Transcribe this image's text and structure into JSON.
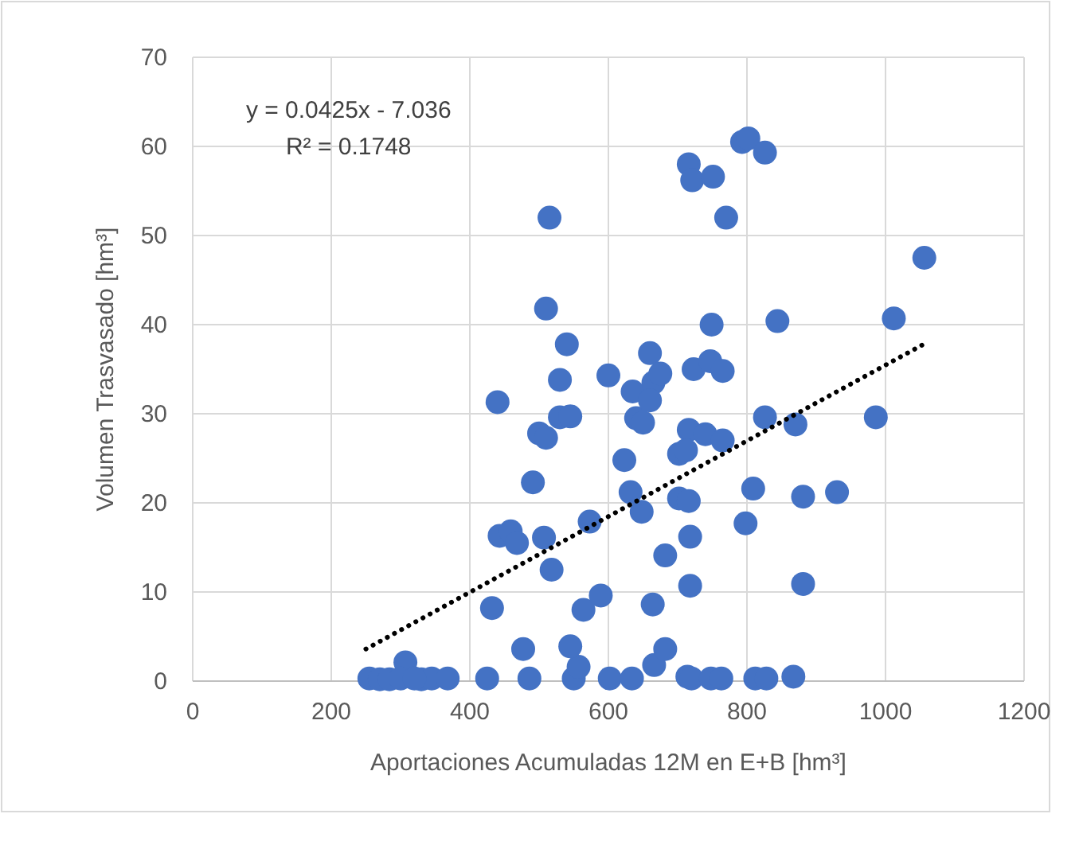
{
  "chart_data": {
    "type": "scatter",
    "xlabel": "Aportaciones Acumuladas 12M en E+B [hm³]",
    "ylabel": "Volumen Trasvasado [hm³]",
    "xlim": [
      0,
      1200
    ],
    "xticks": [
      0,
      200,
      400,
      600,
      800,
      1000,
      1200
    ],
    "ylim": [
      0,
      70
    ],
    "yticks": [
      0,
      10,
      20,
      30,
      40,
      50,
      60,
      70
    ],
    "grid": true,
    "annotations": [
      "y = 0.0425x - 7.036",
      "R² = 0.1748"
    ],
    "series": [
      {
        "color": "#4472c4",
        "marker": "circle",
        "x": [
          255,
          270,
          284,
          307,
          330,
          345,
          368,
          425,
          486,
          550,
          557,
          545,
          477,
          432,
          564,
          589,
          602,
          634,
          664,
          666,
          682,
          714,
          720,
          748,
          718,
          682,
          718,
          518,
          507,
          443,
          459,
          468,
          573,
          491,
          623,
          632,
          648,
          702,
          716,
          702,
          809,
          881,
          930,
          798,
          881,
          763,
          812,
          828,
          867,
          793,
          802,
          826,
          716,
          721,
          751,
          770,
          1056,
          1012,
          844,
          749,
          723,
          747,
          765,
          826,
          870,
          986,
          716,
          740,
          765,
          712,
          515,
          510,
          540,
          530,
          600,
          635,
          660,
          665,
          675,
          440,
          530,
          545,
          640,
          650,
          660,
          500,
          510,
          300,
          320
        ],
        "values": [
          0.3,
          0.2,
          0.2,
          2.1,
          0.2,
          0.3,
          0.3,
          0.3,
          0.3,
          0.3,
          1.6,
          3.9,
          3.6,
          8.2,
          8.0,
          9.6,
          0.3,
          0.3,
          8.6,
          1.8,
          3.6,
          0.5,
          0.3,
          0.3,
          10.7,
          14.1,
          16.2,
          12.5,
          16.1,
          16.3,
          16.8,
          15.5,
          17.9,
          22.3,
          24.8,
          21.2,
          19.0,
          20.5,
          20.2,
          25.5,
          21.6,
          20.7,
          21.2,
          17.7,
          10.9,
          0.3,
          0.3,
          0.3,
          0.5,
          60.5,
          60.9,
          59.3,
          58.0,
          56.2,
          56.6,
          52.0,
          47.5,
          40.7,
          40.4,
          40.0,
          35.0,
          35.9,
          34.8,
          29.6,
          28.8,
          29.6,
          28.2,
          27.7,
          27.0,
          25.9,
          52.0,
          41.8,
          37.8,
          33.8,
          34.3,
          32.5,
          36.8,
          33.5,
          34.5,
          31.3,
          29.6,
          29.7,
          29.5,
          29.0,
          31.5,
          27.8,
          27.3,
          0.3,
          0.3
        ]
      },
      {
        "type": "line",
        "color": "#000000",
        "line_style": "dotted",
        "x": [
          250,
          1055
        ],
        "values": [
          3.6,
          37.8
        ]
      }
    ]
  }
}
